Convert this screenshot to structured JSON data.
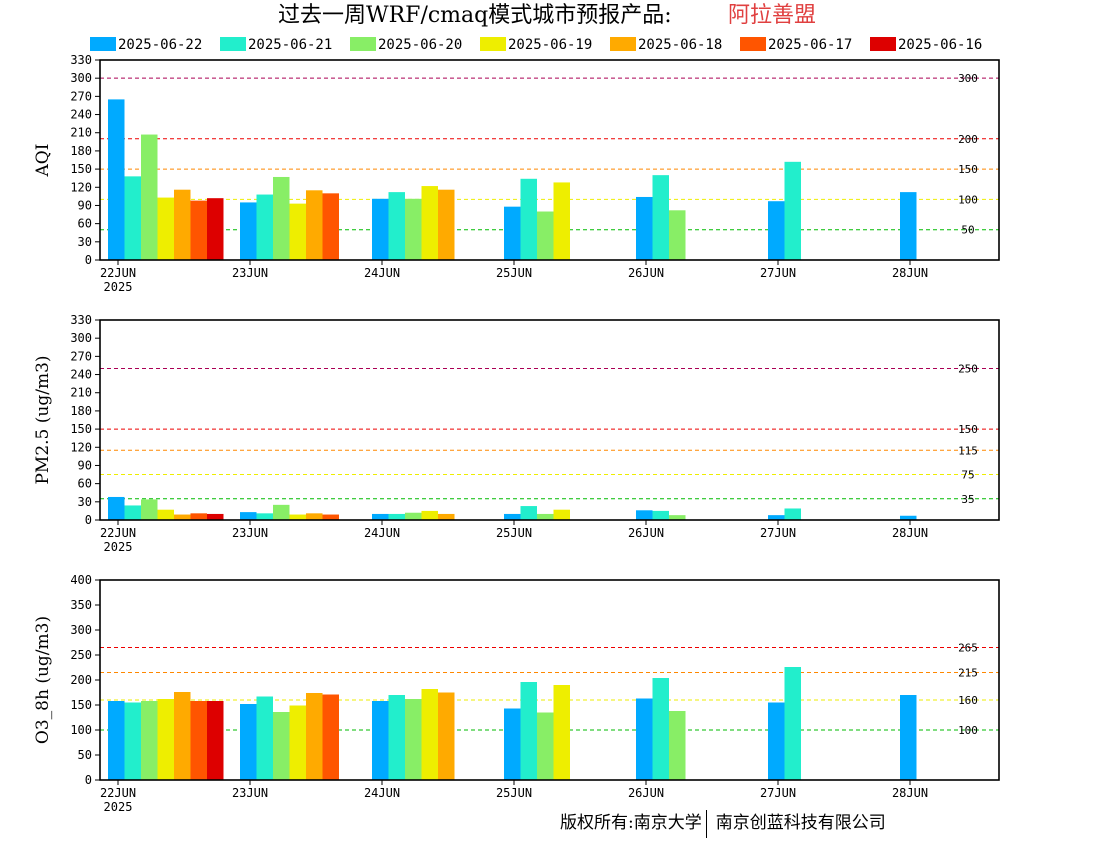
{
  "title": {
    "main": "过去一周WRF/cmaq模式城市预报产品:",
    "region": "阿拉善盟"
  },
  "footer": {
    "left": "版权所有:南京大学",
    "right": "南京创蓝科技有限公司"
  },
  "colors": {
    "series": [
      "#00aaff",
      "#22eecc",
      "#88ee66",
      "#eeee00",
      "#ffaa00",
      "#ff5500",
      "#dd0000"
    ]
  },
  "chart_data": [
    {
      "type": "bar",
      "ylabel": "AQI",
      "ylim": [
        0,
        330
      ],
      "yticks": [
        0,
        30,
        60,
        90,
        120,
        150,
        180,
        210,
        240,
        270,
        300,
        330
      ],
      "categories": [
        "22JUN",
        "23JUN",
        "24JUN",
        "25JUN",
        "26JUN",
        "27JUN",
        "28JUN"
      ],
      "first_category_year": "2025",
      "thresholds": [
        {
          "value": 300,
          "label": "300",
          "color": "#aa0055"
        },
        {
          "value": 200,
          "label": "200",
          "color": "#ee0000"
        },
        {
          "value": 150,
          "label": "150",
          "color": "#ff8800"
        },
        {
          "value": 100,
          "label": "100",
          "color": "#eeee00"
        },
        {
          "value": 50,
          "label": "50",
          "color": "#00bb00"
        }
      ],
      "series": [
        {
          "name": "2025-06-22",
          "values": [
            265,
            95,
            101,
            88,
            104,
            97,
            112
          ]
        },
        {
          "name": "2025-06-21",
          "values": [
            138,
            108,
            112,
            134,
            140,
            162,
            null
          ]
        },
        {
          "name": "2025-06-20",
          "values": [
            207,
            137,
            101,
            80,
            82,
            null,
            null
          ]
        },
        {
          "name": "2025-06-19",
          "values": [
            103,
            93,
            122,
            128,
            null,
            null,
            null
          ]
        },
        {
          "name": "2025-06-18",
          "values": [
            116,
            115,
            116,
            null,
            null,
            null,
            null
          ]
        },
        {
          "name": "2025-06-17",
          "values": [
            98,
            110,
            null,
            null,
            null,
            null,
            null
          ]
        },
        {
          "name": "2025-06-16",
          "values": [
            102,
            null,
            null,
            null,
            null,
            null,
            null
          ]
        }
      ]
    },
    {
      "type": "bar",
      "ylabel": "PM2.5 (ug/m3)",
      "ylim": [
        0,
        330
      ],
      "yticks": [
        0,
        30,
        60,
        90,
        120,
        150,
        180,
        210,
        240,
        270,
        300,
        330
      ],
      "categories": [
        "22JUN",
        "23JUN",
        "24JUN",
        "25JUN",
        "26JUN",
        "27JUN",
        "28JUN"
      ],
      "first_category_year": "2025",
      "thresholds": [
        {
          "value": 250,
          "label": "250",
          "color": "#aa0055"
        },
        {
          "value": 150,
          "label": "150",
          "color": "#ee0000"
        },
        {
          "value": 115,
          "label": "115",
          "color": "#ff8800"
        },
        {
          "value": 75,
          "label": "75",
          "color": "#eeee00"
        },
        {
          "value": 35,
          "label": "35",
          "color": "#00bb00"
        }
      ],
      "series": [
        {
          "name": "2025-06-22",
          "values": [
            38,
            13,
            10,
            10,
            16,
            8,
            7
          ]
        },
        {
          "name": "2025-06-21",
          "values": [
            24,
            11,
            10,
            23,
            15,
            19,
            null
          ]
        },
        {
          "name": "2025-06-20",
          "values": [
            34,
            25,
            12,
            10,
            8,
            null,
            null
          ]
        },
        {
          "name": "2025-06-19",
          "values": [
            17,
            9,
            15,
            17,
            null,
            null,
            null
          ]
        },
        {
          "name": "2025-06-18",
          "values": [
            9,
            11,
            10,
            null,
            null,
            null,
            null
          ]
        },
        {
          "name": "2025-06-17",
          "values": [
            11,
            9,
            null,
            null,
            null,
            null,
            null
          ]
        },
        {
          "name": "2025-06-16",
          "values": [
            10,
            null,
            null,
            null,
            null,
            null,
            null
          ]
        }
      ]
    },
    {
      "type": "bar",
      "ylabel": "O3_8h (ug/m3)",
      "ylim": [
        0,
        400
      ],
      "yticks": [
        0,
        50,
        100,
        150,
        200,
        250,
        300,
        350,
        400
      ],
      "categories": [
        "22JUN",
        "23JUN",
        "24JUN",
        "25JUN",
        "26JUN",
        "27JUN",
        "28JUN"
      ],
      "first_category_year": "2025",
      "thresholds": [
        {
          "value": 265,
          "label": "265",
          "color": "#ee0000"
        },
        {
          "value": 215,
          "label": "215",
          "color": "#ff8800"
        },
        {
          "value": 160,
          "label": "160",
          "color": "#eeee00"
        },
        {
          "value": 100,
          "label": "100",
          "color": "#00bb00"
        }
      ],
      "series": [
        {
          "name": "2025-06-22",
          "values": [
            158,
            152,
            158,
            143,
            163,
            155,
            170
          ]
        },
        {
          "name": "2025-06-21",
          "values": [
            155,
            167,
            170,
            196,
            204,
            226,
            null
          ]
        },
        {
          "name": "2025-06-20",
          "values": [
            158,
            136,
            162,
            135,
            138,
            null,
            null
          ]
        },
        {
          "name": "2025-06-19",
          "values": [
            162,
            149,
            182,
            190,
            null,
            null,
            null
          ]
        },
        {
          "name": "2025-06-18",
          "values": [
            176,
            174,
            175,
            null,
            null,
            null,
            null
          ]
        },
        {
          "name": "2025-06-17",
          "values": [
            158,
            171,
            null,
            null,
            null,
            null,
            null
          ]
        },
        {
          "name": "2025-06-16",
          "values": [
            158,
            null,
            null,
            null,
            null,
            null,
            null
          ]
        }
      ]
    }
  ]
}
